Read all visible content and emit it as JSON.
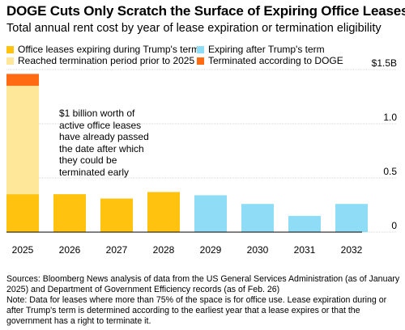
{
  "title": "DOGE Cuts Only Scratch the Surface of Expiring Office Leases",
  "subtitle": "Total annual rent cost by year of lease expiration or termination eligibility",
  "legend": [
    {
      "label": "Office leases expiring during Trump's term",
      "color": "#ffc20e"
    },
    {
      "label": "Expiring after Trump's term",
      "color": "#8fdcf7"
    },
    {
      "label": "Reached termination period prior to 2025",
      "color": "#ffe79a"
    },
    {
      "label": "Terminated according to DOGE",
      "color": "#ff6a13"
    }
  ],
  "annotation": "$1 billion worth of active office leases have already passed the date after which they could be terminated early",
  "notes": {
    "sources": "Sources: Bloomberg News analysis of data from the US General Services Administration (as of January 2025) and Department of Government Efficiency records (as of Feb. 26)",
    "note": "Note: Data for leases where more than 75% of the space is for office use. Lease expiration during or after Trump's term is determined according to the earliest year that a lease expires or that the government has a right to terminate it."
  },
  "chart_data": {
    "type": "bar",
    "stacked": true,
    "categories": [
      "2025",
      "2026",
      "2027",
      "2028",
      "2029",
      "2030",
      "2031",
      "2032"
    ],
    "series": [
      {
        "name": "Office leases expiring during Trump's term",
        "color": "#ffc20e",
        "values": [
          0.35,
          0.35,
          0.31,
          0.37,
          0,
          0,
          0,
          0
        ]
      },
      {
        "name": "Expiring after Trump's term",
        "color": "#8fdcf7",
        "values": [
          0,
          0,
          0,
          0,
          0.34,
          0.26,
          0.15,
          0.26
        ]
      },
      {
        "name": "Reached termination period prior to 2025",
        "color": "#ffe79a",
        "values": [
          1.0,
          0,
          0,
          0,
          0,
          0,
          0,
          0
        ]
      },
      {
        "name": "Terminated according to DOGE",
        "color": "#ff6a13",
        "values": [
          0.11,
          0,
          0,
          0,
          0,
          0,
          0,
          0
        ]
      }
    ],
    "yticks": [
      {
        "value": 0,
        "label": "0"
      },
      {
        "value": 0.5,
        "label": "0.5"
      },
      {
        "value": 1.0,
        "label": "1.0"
      },
      {
        "value": 1.5,
        "label": "$1.5B"
      }
    ],
    "ylim": [
      0,
      1.5
    ],
    "grid": true
  }
}
